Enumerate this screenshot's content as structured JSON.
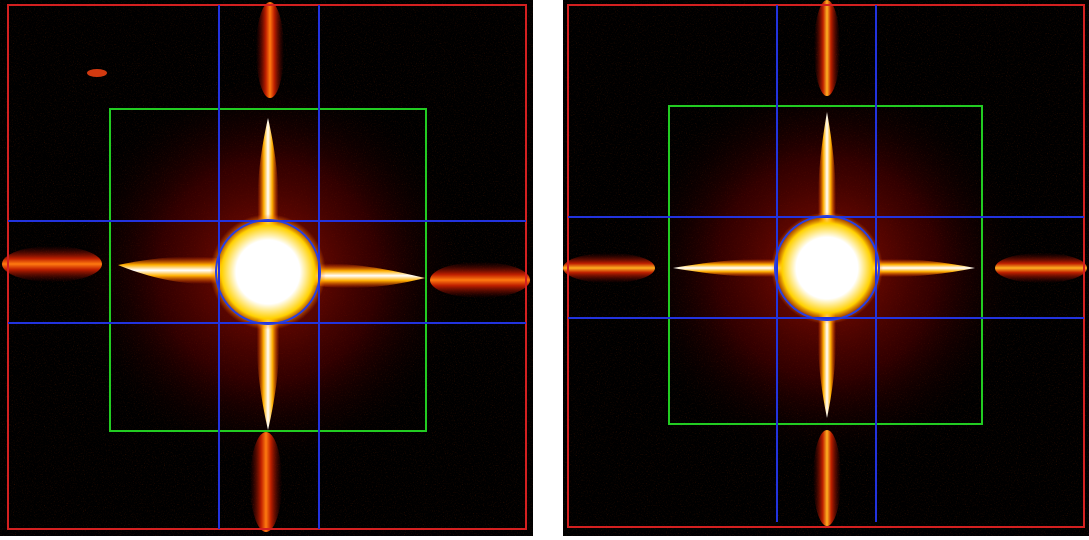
{
  "figure": {
    "panels": [
      {
        "id": "left",
        "overlay_colors": {
          "outer_frame": "#d42020",
          "inner_frame": "#22cc22",
          "grid_lines": "#2233dd",
          "center_circle": "#2a3fe0"
        }
      },
      {
        "id": "right",
        "overlay_colors": {
          "outer_frame": "#d42020",
          "inner_frame": "#22cc22",
          "grid_lines": "#2233dd",
          "center_circle": "#2a3fe0"
        }
      }
    ],
    "colormap": [
      "#000000",
      "#6a0000",
      "#c81a00",
      "#ff6a00",
      "#ffd100",
      "#ffffff"
    ]
  }
}
